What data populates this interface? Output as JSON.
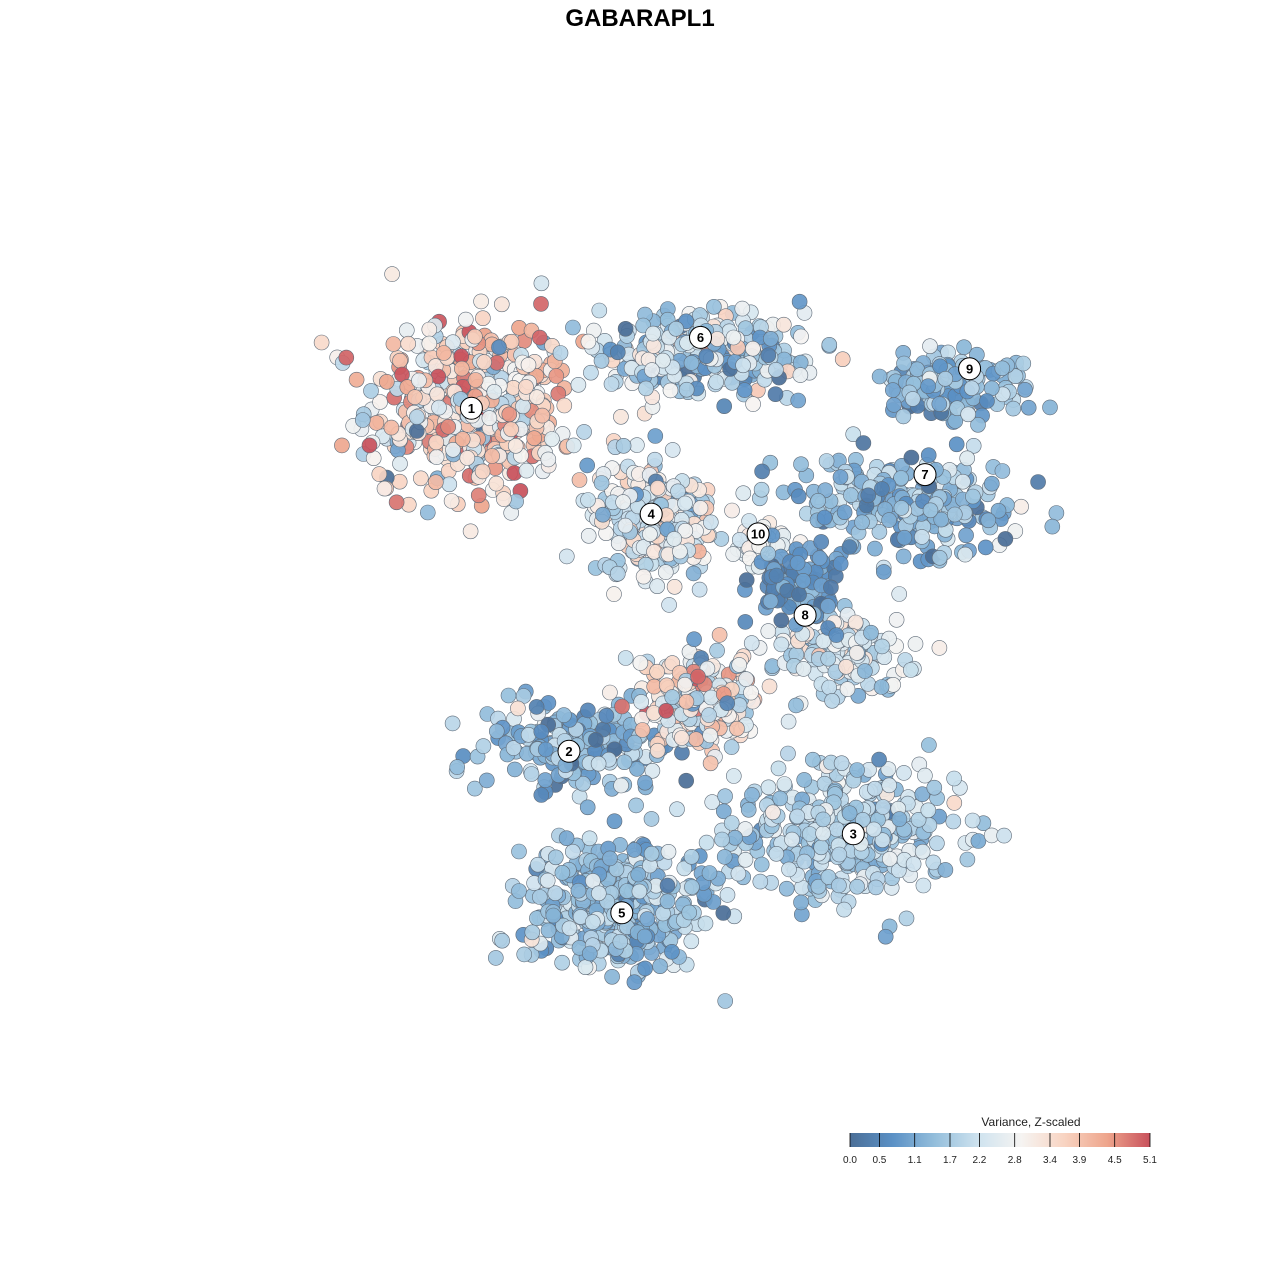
{
  "chart_data": {
    "type": "scatter",
    "title": "GABARAPL1",
    "xlabel": "",
    "ylabel": "",
    "axes_visible": false,
    "grid": false,
    "x_range": [
      -40,
      40
    ],
    "y_range": [
      -40,
      40
    ],
    "color_scale": {
      "title": "Variance, Z-scaled",
      "placement": "bottom-right",
      "min": 0.0,
      "max": 5.1,
      "ticks": [
        0.0,
        0.5,
        1.1,
        1.7,
        2.2,
        2.8,
        3.4,
        3.9,
        4.5,
        5.1
      ],
      "tick_labels": [
        "0.0",
        "0.5",
        "1.1",
        "1.7",
        "2.2",
        "2.8",
        "3.4",
        "3.9",
        "4.5",
        "5.1"
      ],
      "stops": [
        "#4a6e97",
        "#5b91c6",
        "#95bfdc",
        "#cfe3ef",
        "#f6f4f2",
        "#f8d4c2",
        "#eea58c",
        "#c8505b"
      ]
    },
    "clusters": [
      {
        "label": "1",
        "cx": -17.0,
        "cy": 19.5,
        "sx": 8.0,
        "sy": 7.0,
        "n": 480,
        "mean": 3.3,
        "sd": 0.9
      },
      {
        "label": "2",
        "cx": -8.0,
        "cy": -9.5,
        "sx": 7.5,
        "sy": 3.5,
        "n": 190,
        "mean": 1.3,
        "sd": 0.6
      },
      {
        "label": "3",
        "cx": 15.0,
        "cy": -17.0,
        "sx": 8.5,
        "sy": 5.5,
        "n": 380,
        "mean": 1.9,
        "sd": 0.5
      },
      {
        "label": "4",
        "cx": -1.5,
        "cy": 10.0,
        "sx": 5.0,
        "sy": 4.5,
        "n": 220,
        "mean": 2.4,
        "sd": 0.8
      },
      {
        "label": "5",
        "cx": -4.5,
        "cy": -23.0,
        "sx": 7.0,
        "sy": 5.0,
        "n": 460,
        "mean": 1.5,
        "sd": 0.5
      },
      {
        "label": "6",
        "cx": 3.0,
        "cy": 24.0,
        "sx": 8.0,
        "sy": 3.0,
        "n": 330,
        "mean": 1.9,
        "sd": 0.9
      },
      {
        "label": "7",
        "cx": 20.0,
        "cy": 11.5,
        "sx": 9.0,
        "sy": 3.5,
        "n": 260,
        "mean": 1.4,
        "sd": 0.6
      },
      {
        "label": "8",
        "cx": 15.0,
        "cy": -1.5,
        "sx": 5.5,
        "sy": 3.0,
        "n": 150,
        "mean": 2.2,
        "sd": 0.6
      },
      {
        "label": "9",
        "cx": 24.0,
        "cy": 21.5,
        "sx": 5.5,
        "sy": 2.5,
        "n": 150,
        "mean": 1.3,
        "sd": 0.5
      },
      {
        "label": "10",
        "cx": 7.5,
        "cy": 7.5,
        "sx": 2.0,
        "sy": 2.5,
        "n": 45,
        "mean": 2.6,
        "sd": 0.3
      },
      {
        "label": "",
        "cx": 2.5,
        "cy": -5.5,
        "sx": 4.5,
        "sy": 4.0,
        "n": 230,
        "mean": 3.1,
        "sd": 0.9
      },
      {
        "label": "",
        "cx": 11.0,
        "cy": 4.5,
        "sx": 3.0,
        "sy": 3.0,
        "n": 130,
        "mean": 0.7,
        "sd": 0.4
      }
    ],
    "cluster_label_positions": [
      {
        "label": "1",
        "x": -16.9,
        "y": 19.5
      },
      {
        "label": "2",
        "x": -8.6,
        "y": -10.0
      },
      {
        "label": "3",
        "x": 15.6,
        "y": -17.1
      },
      {
        "label": "4",
        "x": -1.6,
        "y": 10.4
      },
      {
        "label": "5",
        "x": -4.1,
        "y": -23.9
      },
      {
        "label": "6",
        "x": 2.6,
        "y": 25.6
      },
      {
        "label": "7",
        "x": 21.7,
        "y": 13.8
      },
      {
        "label": "8",
        "x": 11.5,
        "y": 1.7
      },
      {
        "label": "9",
        "x": 25.5,
        "y": 22.9
      },
      {
        "label": "10",
        "x": 7.5,
        "y": 8.7
      }
    ]
  }
}
